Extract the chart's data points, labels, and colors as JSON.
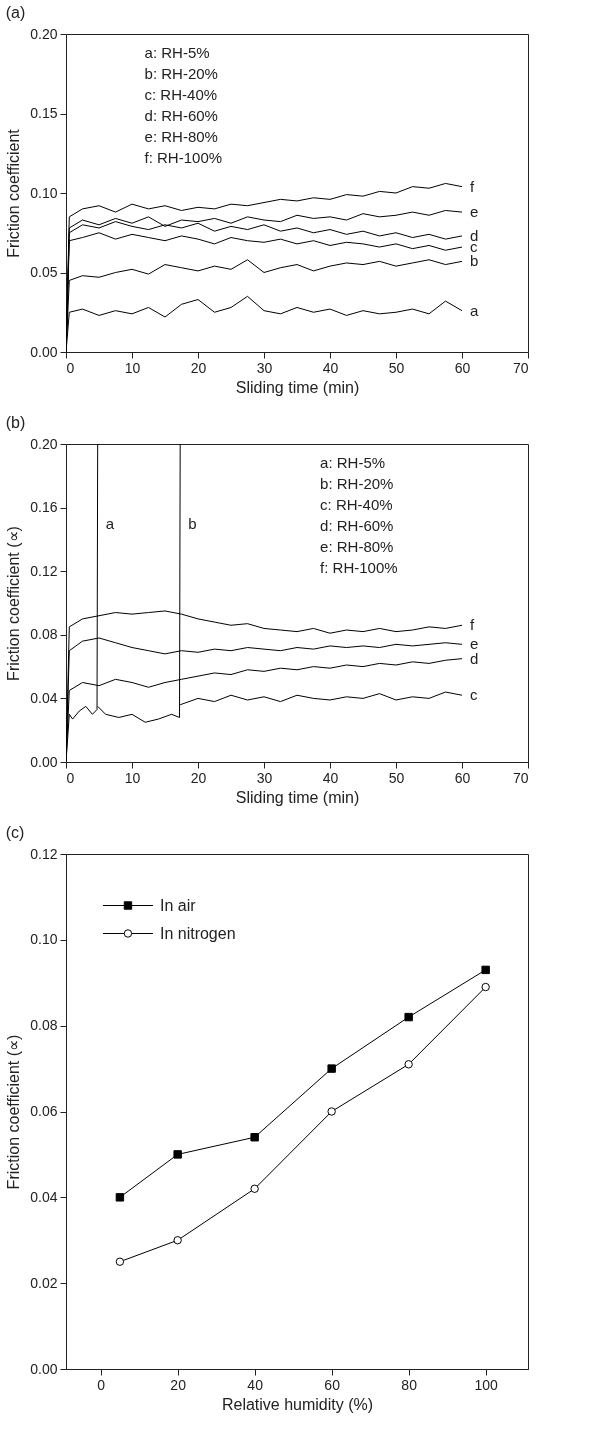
{
  "chart_data": [
    {
      "type": "line",
      "title": "(a)",
      "xlabel": "Sliding time (min)",
      "ylabel": "Friction coefficient",
      "xlim": [
        0,
        70
      ],
      "xticks": [
        0,
        10,
        20,
        30,
        40,
        50,
        60,
        70
      ],
      "ylim": [
        0,
        0.2
      ],
      "yticks": [
        {
          "value": 0,
          "label": "0.00"
        },
        {
          "value": 0.05,
          "label": "0.05"
        },
        {
          "value": 0.1,
          "label": "0.10"
        },
        {
          "value": 0.15,
          "label": "0.15"
        },
        {
          "value": 0.2,
          "label": "0.20"
        }
      ],
      "grid": false,
      "marker": "none",
      "line_style": "solid",
      "x": [
        0,
        0.5,
        2.5,
        5,
        7.5,
        10,
        12.5,
        15,
        17.5,
        20,
        22.5,
        25,
        27.5,
        30,
        32.5,
        35,
        37.5,
        40,
        42.5,
        45,
        47.5,
        50,
        52.5,
        55,
        57.5,
        60
      ],
      "series": [
        {
          "name": "a",
          "color": "#000000",
          "values": [
            0,
            0.025,
            0.027,
            0.023,
            0.026,
            0.024,
            0.028,
            0.022,
            0.03,
            0.033,
            0.025,
            0.028,
            0.035,
            0.026,
            0.024,
            0.028,
            0.025,
            0.027,
            0.023,
            0.026,
            0.024,
            0.025,
            0.027,
            0.024,
            0.032,
            0.026
          ]
        },
        {
          "name": "b",
          "color": "#000000",
          "values": [
            0,
            0.045,
            0.048,
            0.047,
            0.05,
            0.052,
            0.049,
            0.055,
            0.053,
            0.051,
            0.054,
            0.052,
            0.058,
            0.05,
            0.053,
            0.055,
            0.051,
            0.054,
            0.056,
            0.055,
            0.057,
            0.054,
            0.056,
            0.058,
            0.055,
            0.057
          ]
        },
        {
          "name": "c",
          "color": "#000000",
          "values": [
            0,
            0.07,
            0.072,
            0.075,
            0.071,
            0.074,
            0.072,
            0.07,
            0.073,
            0.071,
            0.068,
            0.072,
            0.07,
            0.069,
            0.071,
            0.068,
            0.07,
            0.067,
            0.069,
            0.068,
            0.066,
            0.068,
            0.065,
            0.067,
            0.064,
            0.066
          ]
        },
        {
          "name": "d",
          "color": "#000000",
          "values": [
            0,
            0.075,
            0.08,
            0.078,
            0.082,
            0.079,
            0.077,
            0.08,
            0.078,
            0.081,
            0.076,
            0.079,
            0.077,
            0.08,
            0.076,
            0.078,
            0.075,
            0.077,
            0.074,
            0.076,
            0.073,
            0.075,
            0.072,
            0.074,
            0.071,
            0.073
          ]
        },
        {
          "name": "e",
          "color": "#000000",
          "values": [
            0,
            0.078,
            0.083,
            0.08,
            0.084,
            0.081,
            0.085,
            0.079,
            0.083,
            0.082,
            0.084,
            0.081,
            0.085,
            0.083,
            0.082,
            0.086,
            0.084,
            0.085,
            0.083,
            0.087,
            0.085,
            0.086,
            0.088,
            0.086,
            0.089,
            0.088
          ]
        },
        {
          "name": "f",
          "color": "#000000",
          "values": [
            0,
            0.085,
            0.09,
            0.092,
            0.088,
            0.093,
            0.09,
            0.092,
            0.089,
            0.091,
            0.09,
            0.093,
            0.092,
            0.094,
            0.096,
            0.095,
            0.097,
            0.096,
            0.099,
            0.098,
            0.101,
            0.1,
            0.104,
            0.103,
            0.106,
            0.104
          ]
        }
      ],
      "annotations": [
        "a: RH-5%",
        "b: RH-20%",
        "c: RH-40%",
        "d: RH-60%",
        "e: RH-80%",
        "f: RH-100%"
      ]
    },
    {
      "type": "line",
      "title": "(b)",
      "xlabel": "Sliding time (min)",
      "ylabel": "Friction coefficient (∝)",
      "xlim": [
        0,
        70
      ],
      "xticks": [
        0,
        10,
        20,
        30,
        40,
        50,
        60,
        70
      ],
      "ylim": [
        0,
        0.2
      ],
      "yticks": [
        {
          "value": 0,
          "label": "0.00"
        },
        {
          "value": 0.04,
          "label": "0.04"
        },
        {
          "value": 0.08,
          "label": "0.08"
        },
        {
          "value": 0.12,
          "label": "0.12"
        },
        {
          "value": 0.16,
          "label": "0.16"
        },
        {
          "value": 0.2,
          "label": "0.20"
        }
      ],
      "grid": false,
      "marker": "none",
      "line_style": "solid",
      "series": [
        {
          "name": "a",
          "color": "#000000",
          "x": [
            0,
            0.5,
            1,
            2,
            3,
            4,
            4.7,
            4.8
          ],
          "values": [
            0,
            0.03,
            0.027,
            0.032,
            0.035,
            0.03,
            0.033,
            0.2
          ]
        },
        {
          "name": "b",
          "color": "#000000",
          "x": [
            4.8,
            6,
            8,
            10,
            12,
            14,
            16,
            17.2,
            17.3
          ],
          "values": [
            0.035,
            0.03,
            0.028,
            0.03,
            0.025,
            0.027,
            0.03,
            0.028,
            0.2
          ]
        },
        {
          "name": "c",
          "color": "#000000",
          "x": [
            17.3,
            20,
            22.5,
            25,
            27.5,
            30,
            32.5,
            35,
            37.5,
            40,
            42.5,
            45,
            47.5,
            50,
            52.5,
            55,
            57.5,
            60
          ],
          "values": [
            0.036,
            0.04,
            0.038,
            0.042,
            0.039,
            0.041,
            0.038,
            0.042,
            0.04,
            0.039,
            0.041,
            0.04,
            0.043,
            0.039,
            0.041,
            0.04,
            0.044,
            0.042
          ]
        },
        {
          "color": "#000000",
          "x": [
            0,
            0.5,
            2.5,
            5,
            7.5,
            10,
            12.5,
            15,
            17.5,
            20,
            22.5,
            25,
            27.5,
            30,
            32.5,
            35,
            37.5,
            40,
            42.5,
            45,
            47.5,
            50,
            52.5,
            55,
            57.5,
            60
          ],
          "name": "d",
          "values": [
            0,
            0.045,
            0.05,
            0.048,
            0.052,
            0.05,
            0.047,
            0.05,
            0.052,
            0.054,
            0.056,
            0.055,
            0.058,
            0.057,
            0.059,
            0.058,
            0.06,
            0.059,
            0.061,
            0.06,
            0.062,
            0.061,
            0.063,
            0.062,
            0.064,
            0.065
          ]
        },
        {
          "color": "#000000",
          "x": [
            0,
            0.5,
            2.5,
            5,
            7.5,
            10,
            12.5,
            15,
            17.5,
            20,
            22.5,
            25,
            27.5,
            30,
            32.5,
            35,
            37.5,
            40,
            42.5,
            45,
            47.5,
            50,
            52.5,
            55,
            57.5,
            60
          ],
          "name": "e",
          "values": [
            0,
            0.07,
            0.076,
            0.078,
            0.075,
            0.072,
            0.07,
            0.068,
            0.07,
            0.069,
            0.071,
            0.07,
            0.072,
            0.071,
            0.07,
            0.072,
            0.071,
            0.073,
            0.072,
            0.073,
            0.072,
            0.074,
            0.073,
            0.074,
            0.075,
            0.074
          ]
        },
        {
          "color": "#000000",
          "x": [
            0,
            0.5,
            2.5,
            5,
            7.5,
            10,
            12.5,
            15,
            17.5,
            20,
            22.5,
            25,
            27.5,
            30,
            32.5,
            35,
            37.5,
            40,
            42.5,
            45,
            47.5,
            50,
            52.5,
            55,
            57.5,
            60
          ],
          "name": "f",
          "values": [
            0,
            0.085,
            0.09,
            0.092,
            0.094,
            0.093,
            0.094,
            0.095,
            0.093,
            0.09,
            0.088,
            0.086,
            0.087,
            0.084,
            0.083,
            0.082,
            0.084,
            0.081,
            0.083,
            0.082,
            0.084,
            0.082,
            0.083,
            0.085,
            0.084,
            0.086
          ]
        }
      ],
      "annotations": [
        "a: RH-5%",
        "b: RH-20%",
        "c: RH-40%",
        "d: RH-60%",
        "e: RH-80%",
        "f: RH-100%"
      ]
    },
    {
      "type": "line",
      "title": "(c)",
      "xlabel": "Relative humidity (%)",
      "ylabel": "Friction coefficient (∝)",
      "xlim": [
        -9,
        111
      ],
      "xticks": [
        0,
        20,
        40,
        60,
        80,
        100
      ],
      "ylim": [
        0,
        0.12
      ],
      "yticks": [
        {
          "value": 0,
          "label": "0.00"
        },
        {
          "value": 0.02,
          "label": "0.02"
        },
        {
          "value": 0.04,
          "label": "0.04"
        },
        {
          "value": 0.06,
          "label": "0.06"
        },
        {
          "value": 0.08,
          "label": "0.08"
        },
        {
          "value": 0.1,
          "label": "0.10"
        },
        {
          "value": 0.12,
          "label": "0.12"
        }
      ],
      "grid": false,
      "legend": "top left",
      "line_style": "solid",
      "x": [
        5,
        20,
        40,
        60,
        80,
        100
      ],
      "series": [
        {
          "name": "In air",
          "color": "#000000",
          "marker": "square",
          "values": [
            0.04,
            0.05,
            0.054,
            0.07,
            0.082,
            0.093
          ]
        },
        {
          "name": "In nitrogen",
          "color": "#000000",
          "marker": "circle",
          "values": [
            0.025,
            0.03,
            0.042,
            0.06,
            0.071,
            0.089
          ]
        }
      ]
    }
  ]
}
